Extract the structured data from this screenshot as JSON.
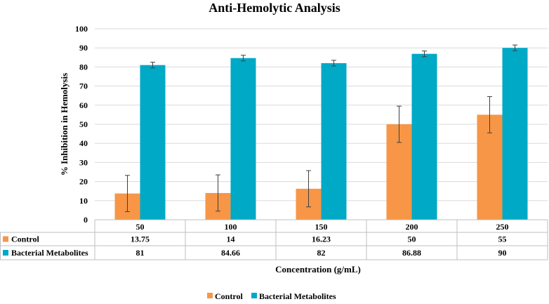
{
  "chart_data": {
    "type": "bar",
    "title": "Anti-Hemolytic Analysis",
    "xlabel": "Concentration (g/mL)",
    "ylabel": "% Inhibition  in  Hemolysis",
    "ylim": [
      0,
      100
    ],
    "yticks": [
      0,
      10,
      20,
      30,
      40,
      50,
      60,
      70,
      80,
      90,
      100
    ],
    "categories": [
      "50",
      "100",
      "150",
      "200",
      "250"
    ],
    "series": [
      {
        "name": "Control",
        "color": "#F79646",
        "values": [
          13.75,
          14,
          16.23,
          50,
          55
        ],
        "labels": [
          "13.75",
          "14",
          "16.23",
          "50",
          "55"
        ],
        "errors": [
          9.5,
          9.5,
          9.5,
          9.5,
          9.5
        ]
      },
      {
        "name": "Bacterial Metabolites",
        "color": "#00A9C6",
        "values": [
          81,
          84.66,
          82,
          86.88,
          90
        ],
        "labels": [
          "81",
          "84.66",
          "82",
          "86.88",
          "90"
        ],
        "errors": [
          1.5,
          1.5,
          1.5,
          1.5,
          1.5
        ]
      }
    ],
    "legend": "bottom-center",
    "grid": true
  }
}
